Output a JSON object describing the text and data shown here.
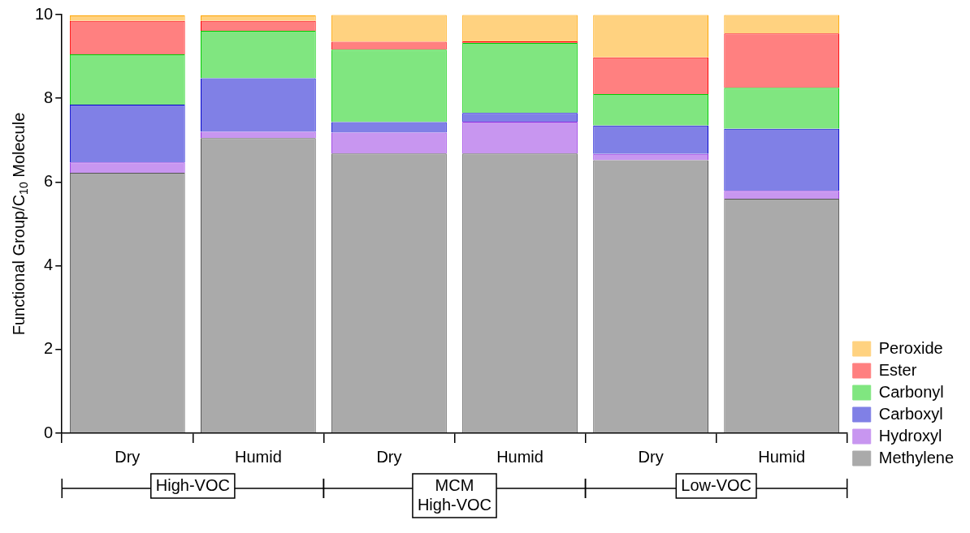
{
  "chart_data": {
    "type": "bar",
    "stacked": true,
    "ylabel": "Functional Group/C$_{10}$ Molecule",
    "categories": [
      "Dry",
      "Humid",
      "Dry",
      "Humid",
      "Dry",
      "Humid"
    ],
    "series": [
      {
        "name": "Methylene",
        "color": "#aaaaaa",
        "values": [
          6.22,
          7.05,
          6.68,
          6.68,
          6.52,
          5.6
        ]
      },
      {
        "name": "Hydroxyl",
        "color": "#c896f0",
        "values": [
          0.25,
          0.15,
          0.5,
          0.76,
          0.15,
          0.19
        ]
      },
      {
        "name": "Carboxyl",
        "color": "#8080e6",
        "values": [
          1.38,
          1.28,
          0.25,
          0.21,
          0.68,
          1.48
        ]
      },
      {
        "name": "Carbonyl",
        "color": "#80e680",
        "values": [
          1.2,
          1.13,
          1.73,
          1.67,
          0.75,
          0.98
        ]
      },
      {
        "name": "Ester",
        "color": "#ff8080",
        "values": [
          0.8,
          0.24,
          0.19,
          0.04,
          0.88,
          1.3
        ]
      },
      {
        "name": "Peroxide",
        "color": "#ffd280",
        "values": [
          0.13,
          0.13,
          0.64,
          0.63,
          1.01,
          0.44
        ]
      }
    ],
    "ylim": [
      0,
      10
    ],
    "yticks": [
      0,
      2,
      4,
      6,
      8,
      10
    ],
    "grid": false,
    "legend": "bottom right",
    "annotations": [
      "High-VOC",
      "MCM\nHigh-VOC",
      "Low-VOC"
    ]
  }
}
